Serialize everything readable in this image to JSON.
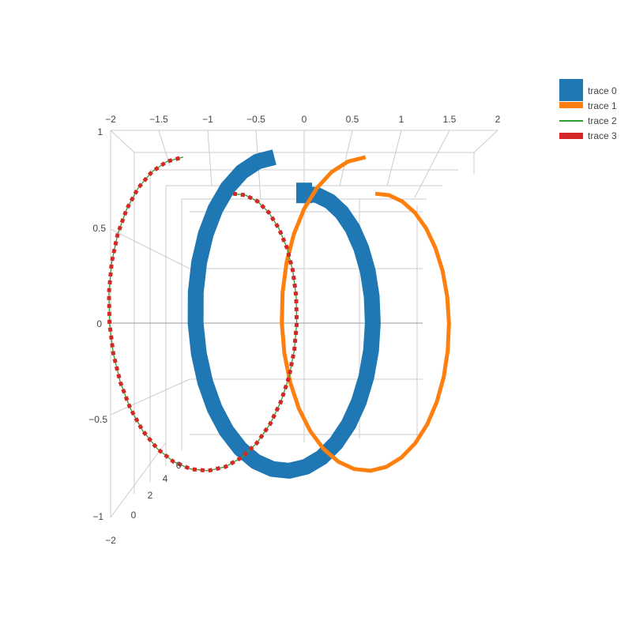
{
  "chart_data": {
    "type": "line",
    "projection": "3d",
    "x_ticks": [
      "−2",
      "−1.5",
      "−1",
      "−0.5",
      "0",
      "0.5",
      "1",
      "1.5",
      "2"
    ],
    "x_tick_values": [
      -2,
      -1.5,
      -1,
      -0.5,
      0,
      0.5,
      1,
      1.5,
      2
    ],
    "y_ticks": [
      "1",
      "0.5",
      "0",
      "−0.5",
      "−1"
    ],
    "y_tick_values": [
      1,
      0.5,
      0,
      -0.5,
      -1
    ],
    "z_ticks": [
      "−2",
      "0",
      "2",
      "4",
      "6"
    ],
    "z_tick_values": [
      -2,
      0,
      2,
      4,
      6
    ],
    "xlim": [
      -2,
      2
    ],
    "ylim": [
      -1,
      1
    ],
    "zlim": [
      -2,
      7
    ],
    "grid": true,
    "legend_position": "top-right",
    "series": [
      {
        "name": "trace 0",
        "color": "#1f77b4",
        "width": 20,
        "dash": "solid",
        "x_offset": 0,
        "marker_start": "square"
      },
      {
        "name": "trace 1",
        "color": "#ff7f0e",
        "width": 5,
        "dash": "solid",
        "x_offset": 1
      },
      {
        "name": "trace 2",
        "color": "#2ca02c",
        "width": 1.3,
        "dash": "solid",
        "x_offset": -1
      },
      {
        "name": "trace 3",
        "color": "#d62728",
        "width": 5,
        "dash": "dot",
        "x_offset": -1
      }
    ],
    "helix": {
      "turns": 1,
      "t_range": [
        0,
        6.283
      ],
      "points": 32,
      "z_range": [
        0,
        6.283
      ]
    }
  }
}
